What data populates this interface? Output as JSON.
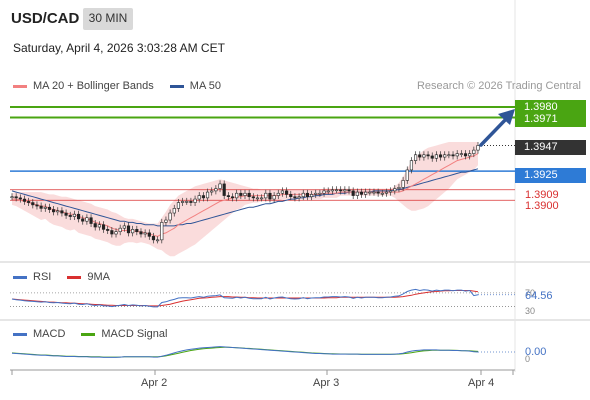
{
  "header": {
    "pair": "USD/CAD",
    "timeframe": "30 MIN",
    "datetime": "Saturday, April 4, 2026 3:03:28 AM CET"
  },
  "credit": "Research © 2026 Trading Central",
  "colors": {
    "ma20": "#f28080",
    "ma50": "#2f5597",
    "bollinger_fill": "#f8d0d0",
    "green_level": "#4aa512",
    "blue_level": "#2e7bd6",
    "red_level": "#d93030",
    "dark_label": "#333333",
    "rsi": "#4472c4",
    "rsi_ma": "#d93030",
    "macd": "#4472c4",
    "macd_signal": "#4aa512",
    "arrow": "#2f5597"
  },
  "legends": {
    "main": [
      {
        "label": "MA 20 + Bollinger Bands",
        "color": "#f28080"
      },
      {
        "label": "MA 50",
        "color": "#2f5597"
      }
    ],
    "rsi": [
      {
        "label": "RSI",
        "color": "#4472c4"
      },
      {
        "label": "9MA",
        "color": "#d93030"
      }
    ],
    "macd": [
      {
        "label": "MACD",
        "color": "#4472c4"
      },
      {
        "label": "MACD Signal",
        "color": "#4aa512"
      }
    ]
  },
  "levels": {
    "target_high": "1.3980",
    "target_low": "1.3971",
    "last": "1.3947",
    "pivot": "1.3925",
    "support_1": "1.3909",
    "support_2": "1.3900"
  },
  "rsi_labels": {
    "value": "64.56",
    "level_70": "70",
    "level_30": "30"
  },
  "macd_labels": {
    "value": "0.00",
    "zero": "0"
  },
  "x_ticks": [
    "Apr 2",
    "Apr 3",
    "Apr 4"
  ],
  "chart_data": {
    "type": "line",
    "ylim": [
      1.3853,
      1.3986
    ],
    "price": [
      1.3903,
      1.3902,
      1.3901,
      1.3899,
      1.3898,
      1.3896,
      1.3895,
      1.3893,
      1.3894,
      1.3892,
      1.389,
      1.3891,
      1.3889,
      1.3887,
      1.3886,
      1.3888,
      1.3884,
      1.3882,
      1.3885,
      1.388,
      1.3877,
      1.3879,
      1.3875,
      1.3874,
      1.3871,
      1.3873,
      1.3876,
      1.3878,
      1.3872,
      1.3875,
      1.3873,
      1.3871,
      1.3872,
      1.3869,
      1.3866,
      1.3866,
      1.3881,
      1.3883,
      1.3889,
      1.3893,
      1.3898,
      1.3899,
      1.3899,
      1.3898,
      1.3901,
      1.3904,
      1.3902,
      1.3907,
      1.3908,
      1.391,
      1.3914,
      1.3904,
      1.3903,
      1.3902,
      1.3906,
      1.3904,
      1.3906,
      1.3903,
      1.3902,
      1.3902,
      1.3902,
      1.3906,
      1.3901,
      1.3904,
      1.3906,
      1.3908,
      1.3905,
      1.3903,
      1.3902,
      1.3903,
      1.3906,
      1.3903,
      1.3905,
      1.3906,
      1.3906,
      1.3908,
      1.3908,
      1.3909,
      1.3909,
      1.3908,
      1.3909,
      1.3908,
      1.3904,
      1.3907,
      1.3905,
      1.3907,
      1.3907,
      1.3907,
      1.3906,
      1.3906,
      1.3907,
      1.3908,
      1.391,
      1.3911,
      1.3917,
      1.3926,
      1.3934,
      1.3939,
      1.3937,
      1.3939,
      1.3938,
      1.3936,
      1.3939,
      1.3937,
      1.3939,
      1.3939,
      1.3938,
      1.394,
      1.394,
      1.3938,
      1.394,
      1.3943,
      1.3947
    ],
    "ma20": [
      1.3901,
      1.3901,
      1.39,
      1.3899,
      1.3898,
      1.3897,
      1.3896,
      1.3895,
      1.3895,
      1.3893,
      1.3892,
      1.3891,
      1.389,
      1.3889,
      1.3888,
      1.3888,
      1.3886,
      1.3885,
      1.3884,
      1.3883,
      1.3881,
      1.388,
      1.3879,
      1.3878,
      1.3876,
      1.3875,
      1.3874,
      1.3874,
      1.3874,
      1.3874,
      1.3873,
      1.3873,
      1.3872,
      1.3871,
      1.387,
      1.3869,
      1.3871,
      1.3872,
      1.3874,
      1.3876,
      1.3879,
      1.3881,
      1.3883,
      1.3885,
      1.3887,
      1.3889,
      1.3891,
      1.3893,
      1.3895,
      1.3897,
      1.3899,
      1.39,
      1.3901,
      1.3902,
      1.3903,
      1.3903,
      1.3904,
      1.3904,
      1.3904,
      1.3904,
      1.3904,
      1.3904,
      1.3904,
      1.3904,
      1.3904,
      1.3905,
      1.3905,
      1.3905,
      1.3905,
      1.3905,
      1.3905,
      1.3905,
      1.3905,
      1.3905,
      1.3905,
      1.3906,
      1.3906,
      1.3906,
      1.3906,
      1.3907,
      1.3907,
      1.3907,
      1.3907,
      1.3907,
      1.3907,
      1.3907,
      1.3907,
      1.3907,
      1.3907,
      1.3907,
      1.3907,
      1.3907,
      1.3907,
      1.3907,
      1.3908,
      1.391,
      1.3912,
      1.3914,
      1.3916,
      1.3918,
      1.392,
      1.3922,
      1.3924,
      1.3926,
      1.3928,
      1.393,
      1.3932,
      1.3934,
      1.3935,
      1.3936,
      1.3937,
      1.3938,
      1.394
    ],
    "bb_upper": [
      1.3906,
      1.3907,
      1.3907,
      1.3907,
      1.3907,
      1.3907,
      1.3907,
      1.3907,
      1.3906,
      1.3905,
      1.3905,
      1.3904,
      1.3903,
      1.3903,
      1.3902,
      1.3901,
      1.39,
      1.3899,
      1.3898,
      1.3897,
      1.3895,
      1.3894,
      1.3893,
      1.3892,
      1.389,
      1.3889,
      1.3887,
      1.3885,
      1.3884,
      1.3884,
      1.3883,
      1.3882,
      1.3881,
      1.388,
      1.388,
      1.388,
      1.3885,
      1.389,
      1.3896,
      1.39,
      1.3904,
      1.3906,
      1.3908,
      1.391,
      1.3912,
      1.3913,
      1.3914,
      1.3915,
      1.3916,
      1.3917,
      1.3918,
      1.3917,
      1.3916,
      1.3915,
      1.3914,
      1.3913,
      1.3912,
      1.3911,
      1.391,
      1.391,
      1.3909,
      1.3909,
      1.3909,
      1.3909,
      1.3909,
      1.3909,
      1.3909,
      1.3909,
      1.3909,
      1.3909,
      1.3909,
      1.3909,
      1.3909,
      1.3909,
      1.3909,
      1.391,
      1.391,
      1.391,
      1.391,
      1.391,
      1.391,
      1.391,
      1.391,
      1.391,
      1.391,
      1.391,
      1.391,
      1.391,
      1.391,
      1.391,
      1.391,
      1.391,
      1.3912,
      1.3915,
      1.392,
      1.3927,
      1.3933,
      1.3937,
      1.394,
      1.3943,
      1.3945,
      1.3946,
      1.3947,
      1.3948,
      1.3949,
      1.395,
      1.395,
      1.395,
      1.395,
      1.395,
      1.395,
      1.395,
      1.395
    ],
    "bb_lower": [
      1.3896,
      1.3895,
      1.3893,
      1.3891,
      1.3889,
      1.3887,
      1.3885,
      1.3883,
      1.3884,
      1.3881,
      1.3879,
      1.3878,
      1.3877,
      1.3875,
      1.3874,
      1.3875,
      1.3872,
      1.3871,
      1.387,
      1.3869,
      1.3867,
      1.3866,
      1.3865,
      1.3864,
      1.3862,
      1.3861,
      1.3861,
      1.3863,
      1.3864,
      1.3864,
      1.3863,
      1.3864,
      1.3863,
      1.3862,
      1.386,
      1.3858,
      1.3857,
      1.3854,
      1.3852,
      1.3852,
      1.3854,
      1.3856,
      1.3858,
      1.386,
      1.3862,
      1.3865,
      1.3868,
      1.3871,
      1.3874,
      1.3877,
      1.388,
      1.3883,
      1.3886,
      1.3889,
      1.3892,
      1.3893,
      1.3896,
      1.3897,
      1.3898,
      1.3898,
      1.3899,
      1.3899,
      1.3899,
      1.3899,
      1.3899,
      1.3901,
      1.3901,
      1.3901,
      1.3901,
      1.3901,
      1.3901,
      1.3901,
      1.3901,
      1.3901,
      1.3901,
      1.3902,
      1.3902,
      1.3902,
      1.3902,
      1.3904,
      1.3904,
      1.3904,
      1.3904,
      1.3904,
      1.3904,
      1.3904,
      1.3904,
      1.3904,
      1.3904,
      1.3904,
      1.3904,
      1.3904,
      1.3902,
      1.3899,
      1.3896,
      1.3893,
      1.3891,
      1.3891,
      1.3892,
      1.3893,
      1.3895,
      1.3898,
      1.3901,
      1.3904,
      1.3907,
      1.391,
      1.3914,
      1.3918,
      1.392,
      1.3922,
      1.3924,
      1.3926,
      1.393
    ],
    "ma50": [
      1.3908,
      1.3907,
      1.3906,
      1.3905,
      1.3904,
      1.3903,
      1.3902,
      1.3901,
      1.39,
      1.3899,
      1.3898,
      1.3897,
      1.3896,
      1.3895,
      1.3894,
      1.3893,
      1.3892,
      1.3891,
      1.389,
      1.3889,
      1.3888,
      1.3887,
      1.3886,
      1.3885,
      1.3884,
      1.3883,
      1.3882,
      1.3882,
      1.3881,
      1.3881,
      1.388,
      1.388,
      1.3879,
      1.3879,
      1.3879,
      1.3878,
      1.3878,
      1.3878,
      1.3878,
      1.3878,
      1.3879,
      1.3879,
      1.388,
      1.388,
      1.3881,
      1.3882,
      1.3883,
      1.3884,
      1.3885,
      1.3886,
      1.3887,
      1.3888,
      1.3889,
      1.389,
      1.3891,
      1.3892,
      1.3893,
      1.3894,
      1.3894,
      1.3895,
      1.3896,
      1.3897,
      1.3897,
      1.3898,
      1.3899,
      1.3899,
      1.39,
      1.3901,
      1.3901,
      1.3902,
      1.3902,
      1.3903,
      1.3903,
      1.3904,
      1.3904,
      1.3905,
      1.3905,
      1.3905,
      1.3906,
      1.3906,
      1.3906,
      1.3907,
      1.3907,
      1.3907,
      1.3907,
      1.3907,
      1.3907,
      1.3908,
      1.3908,
      1.3908,
      1.3908,
      1.3908,
      1.3909,
      1.3909,
      1.391,
      1.3911,
      1.3912,
      1.3913,
      1.3914,
      1.3915,
      1.3916,
      1.3917,
      1.3918,
      1.3919,
      1.392,
      1.3921,
      1.3922,
      1.3923,
      1.3924,
      1.3924,
      1.3925,
      1.3926,
      1.3927
    ],
    "rsi": [
      52,
      50,
      49,
      47,
      46,
      45,
      44,
      43,
      44,
      42,
      41,
      42,
      40,
      39,
      38,
      40,
      37,
      36,
      38,
      35,
      33,
      35,
      32,
      32,
      30,
      32,
      34,
      36,
      33,
      35,
      34,
      32,
      33,
      31,
      29,
      29,
      42,
      44,
      48,
      51,
      55,
      56,
      56,
      55,
      57,
      59,
      57,
      60,
      61,
      62,
      64,
      56,
      55,
      54,
      57,
      55,
      57,
      54,
      53,
      53,
      53,
      57,
      52,
      55,
      57,
      58,
      55,
      53,
      52,
      53,
      56,
      53,
      55,
      56,
      56,
      58,
      58,
      59,
      59,
      58,
      59,
      58,
      54,
      57,
      55,
      57,
      57,
      57,
      56,
      56,
      57,
      58,
      60,
      61,
      67,
      74,
      78,
      80,
      77,
      79,
      78,
      75,
      78,
      76,
      78,
      78,
      76,
      78,
      78,
      75,
      77,
      62,
      64.56
    ],
    "rsi_ma": [
      52,
      51,
      50,
      49,
      48,
      47,
      46,
      45,
      44,
      43,
      43,
      42,
      41,
      41,
      40,
      40,
      39,
      38,
      38,
      37,
      36,
      36,
      35,
      34,
      34,
      33,
      33,
      33,
      33,
      33,
      33,
      33,
      33,
      32,
      32,
      32,
      33,
      35,
      37,
      40,
      43,
      46,
      48,
      50,
      52,
      54,
      55,
      56,
      57,
      58,
      59,
      59,
      59,
      58,
      58,
      57,
      57,
      56,
      56,
      55,
      55,
      55,
      55,
      55,
      55,
      55,
      55,
      55,
      55,
      55,
      55,
      55,
      55,
      55,
      55,
      55,
      56,
      56,
      56,
      57,
      57,
      57,
      57,
      57,
      57,
      57,
      57,
      57,
      57,
      57,
      57,
      57,
      57,
      58,
      59,
      61,
      63,
      66,
      68,
      70,
      72,
      73,
      74,
      75,
      76,
      76,
      77,
      77,
      77,
      77,
      77,
      75,
      73
    ],
    "macd": [
      -0.2,
      -0.25,
      -0.3,
      -0.35,
      -0.4,
      -0.45,
      -0.5,
      -0.55,
      -0.55,
      -0.6,
      -0.65,
      -0.65,
      -0.7,
      -0.75,
      -0.75,
      -0.75,
      -0.8,
      -0.8,
      -0.8,
      -0.85,
      -0.85,
      -0.85,
      -0.9,
      -0.9,
      -0.9,
      -0.9,
      -0.85,
      -0.8,
      -0.8,
      -0.8,
      -0.8,
      -0.8,
      -0.8,
      -0.8,
      -0.85,
      -0.85,
      -0.7,
      -0.55,
      -0.35,
      -0.15,
      0.05,
      0.2,
      0.35,
      0.45,
      0.55,
      0.65,
      0.7,
      0.75,
      0.8,
      0.85,
      0.9,
      0.85,
      0.8,
      0.75,
      0.7,
      0.65,
      0.6,
      0.55,
      0.5,
      0.45,
      0.4,
      0.35,
      0.3,
      0.25,
      0.2,
      0.15,
      0.1,
      0.05,
      0.0,
      -0.05,
      -0.1,
      -0.15,
      -0.2,
      -0.25,
      -0.25,
      -0.3,
      -0.3,
      -0.35,
      -0.35,
      -0.35,
      -0.35,
      -0.35,
      -0.35,
      -0.35,
      -0.4,
      -0.4,
      -0.4,
      -0.4,
      -0.4,
      -0.4,
      -0.4,
      -0.4,
      -0.35,
      -0.3,
      -0.2,
      0.0,
      0.15,
      0.25,
      0.3,
      0.35,
      0.35,
      0.35,
      0.35,
      0.3,
      0.3,
      0.3,
      0.25,
      0.25,
      0.2,
      0.2,
      0.15,
      0.05,
      0.0
    ],
    "macd_signal": [
      -0.15,
      -0.2,
      -0.25,
      -0.3,
      -0.35,
      -0.4,
      -0.45,
      -0.5,
      -0.5,
      -0.55,
      -0.6,
      -0.6,
      -0.65,
      -0.7,
      -0.7,
      -0.7,
      -0.75,
      -0.75,
      -0.75,
      -0.8,
      -0.8,
      -0.8,
      -0.85,
      -0.85,
      -0.85,
      -0.85,
      -0.85,
      -0.8,
      -0.8,
      -0.8,
      -0.8,
      -0.8,
      -0.8,
      -0.8,
      -0.8,
      -0.8,
      -0.75,
      -0.65,
      -0.5,
      -0.35,
      -0.2,
      -0.05,
      0.1,
      0.25,
      0.35,
      0.45,
      0.55,
      0.6,
      0.65,
      0.7,
      0.75,
      0.78,
      0.78,
      0.75,
      0.72,
      0.68,
      0.64,
      0.6,
      0.55,
      0.5,
      0.45,
      0.4,
      0.35,
      0.3,
      0.25,
      0.2,
      0.15,
      0.1,
      0.05,
      0.0,
      -0.05,
      -0.1,
      -0.15,
      -0.18,
      -0.22,
      -0.25,
      -0.28,
      -0.3,
      -0.32,
      -0.33,
      -0.34,
      -0.35,
      -0.35,
      -0.35,
      -0.36,
      -0.37,
      -0.38,
      -0.38,
      -0.38,
      -0.38,
      -0.38,
      -0.38,
      -0.37,
      -0.35,
      -0.3,
      -0.22,
      -0.12,
      0.0,
      0.1,
      0.18,
      0.24,
      0.28,
      0.3,
      0.3,
      0.3,
      0.3,
      0.28,
      0.26,
      0.24,
      0.22,
      0.2,
      0.15,
      0.1
    ]
  }
}
